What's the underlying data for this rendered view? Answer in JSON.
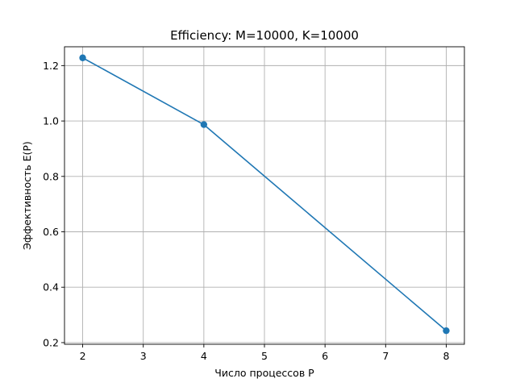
{
  "chart_data": {
    "type": "line",
    "title": "Efficiency: M=10000, K=10000",
    "xlabel": "Число процессов P",
    "ylabel": "Эффективность E(P)",
    "xlim": [
      1.7,
      8.3
    ],
    "ylim": [
      0.194,
      1.268
    ],
    "xticks": [
      2,
      3,
      4,
      5,
      6,
      7,
      8
    ],
    "yticks": [
      0.2,
      0.4,
      0.6,
      0.8,
      1.0,
      1.2
    ],
    "ytick_labels": [
      "0.2",
      "0.4",
      "0.6",
      "0.8",
      "1.0",
      "1.2"
    ],
    "grid": true,
    "series": [
      {
        "x": [
          2,
          4,
          8
        ],
        "y": [
          1.228,
          0.987,
          0.243
        ],
        "color": "#1f77b4",
        "marker": "circle"
      }
    ]
  }
}
